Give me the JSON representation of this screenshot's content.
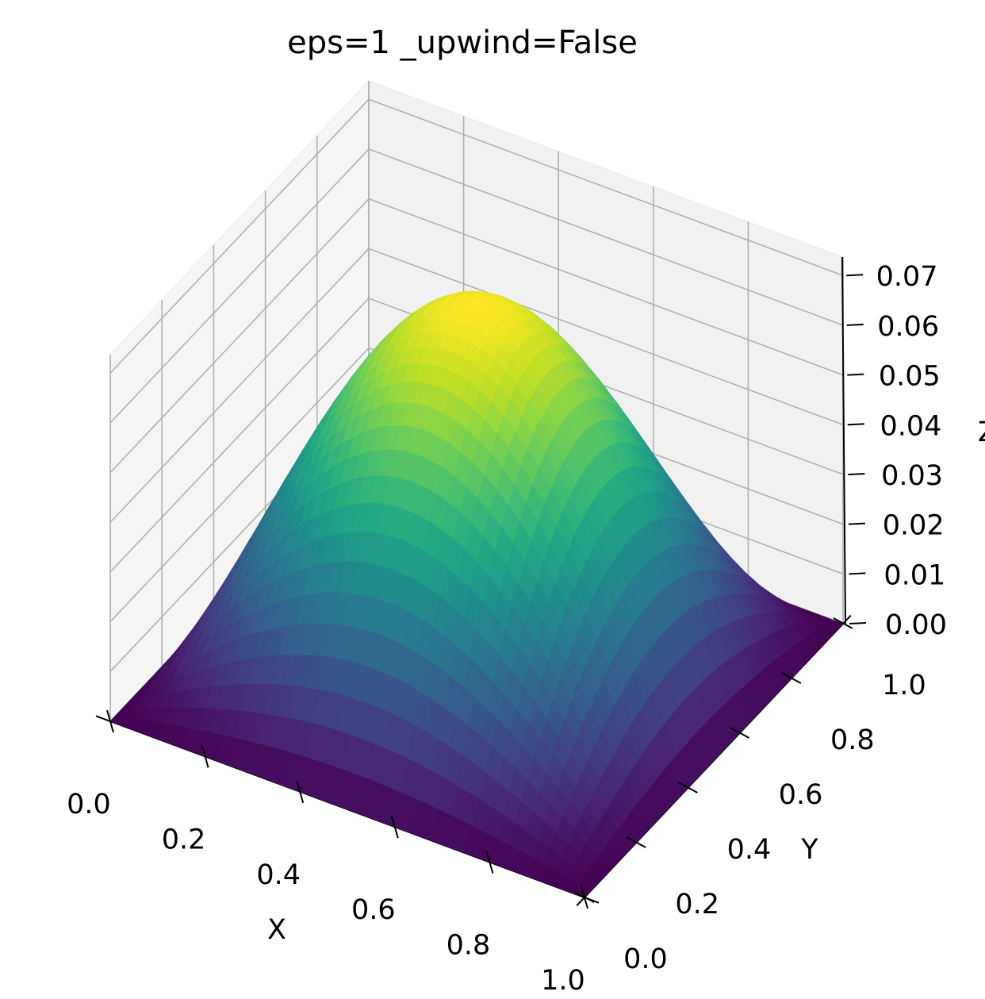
{
  "chart_data": {
    "type": "surface",
    "title": "eps=1 _upwind=False",
    "xlabel": "X",
    "ylabel": "Y",
    "zlabel": "Z",
    "xlim": [
      0.0,
      1.0
    ],
    "ylim": [
      0.0,
      1.0
    ],
    "zlim": [
      0.0,
      0.0737
    ],
    "x_ticks": [
      "0.0",
      "0.2",
      "0.4",
      "0.6",
      "0.8",
      "1.0"
    ],
    "y_ticks": [
      "0.0",
      "0.2",
      "0.4",
      "0.6",
      "0.8",
      "1.0"
    ],
    "z_ticks": [
      "0.00",
      "0.01",
      "0.02",
      "0.03",
      "0.04",
      "0.05",
      "0.06",
      "0.07"
    ],
    "grid": true,
    "colormap": "viridis",
    "function": "peak of about 0.0737 at (0.5, 0.5), zero on the boundary of the unit square",
    "peak": {
      "x": 0.5,
      "y": 0.5,
      "z": 0.0737
    },
    "sample_values": {
      "x": [
        0.0,
        0.25,
        0.5,
        0.75,
        1.0
      ],
      "y_at_0.5": [
        0.0,
        0.0521,
        0.0737,
        0.0521,
        0.0
      ]
    }
  }
}
